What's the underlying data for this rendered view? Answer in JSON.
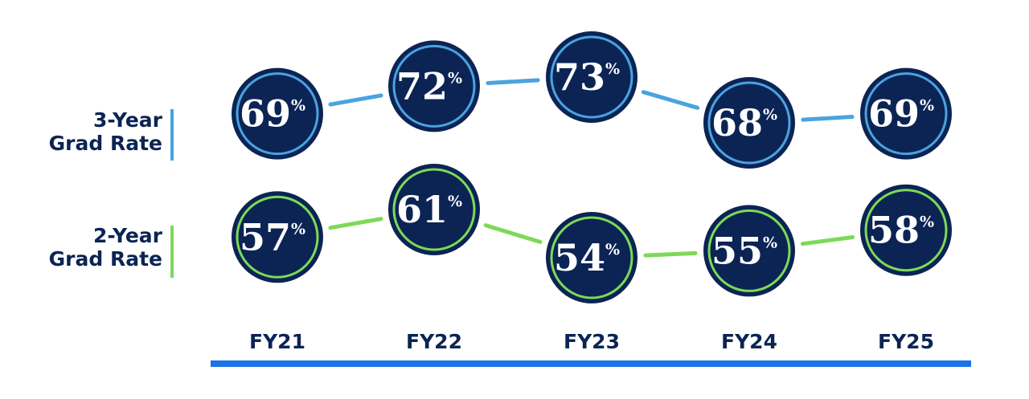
{
  "chart_data": {
    "type": "line",
    "categories": [
      "FY21",
      "FY22",
      "FY23",
      "FY24",
      "FY25"
    ],
    "series": [
      {
        "name_lines": [
          "3-Year",
          "Grad Rate"
        ],
        "values": [
          69,
          72,
          73,
          68,
          69
        ],
        "value_suffix": "%",
        "color": "#4aa3df"
      },
      {
        "name_lines": [
          "2-Year",
          "Grad Rate"
        ],
        "values": [
          57,
          61,
          54,
          55,
          58
        ],
        "value_suffix": "%",
        "color": "#7ed957"
      }
    ],
    "node_fill": "#0b2454",
    "label_color": "#0b2454",
    "axis_color": "#1a73e8"
  }
}
